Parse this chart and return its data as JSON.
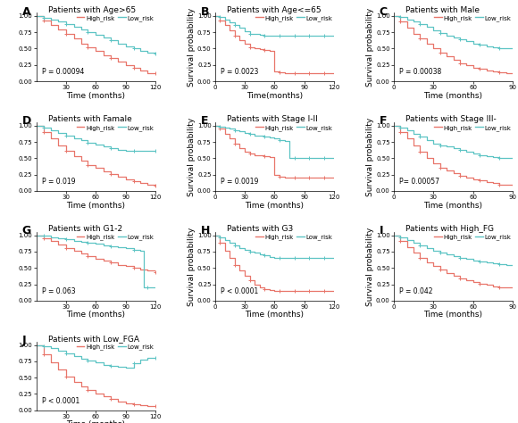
{
  "panels": [
    {
      "label": "A",
      "title": "Patients with Age>65",
      "pvalue": "P = 0.00094",
      "xlim": [
        0,
        120
      ],
      "ylim": [
        0,
        1.05
      ],
      "xticks": [
        30,
        60,
        90,
        120
      ],
      "yticks": [
        0.0,
        0.25,
        0.5,
        0.75,
        1.0
      ],
      "show_ylabel": false,
      "xlabel": "Time (months)",
      "row": 0,
      "col": 0,
      "high_x": [
        0,
        8,
        15,
        22,
        30,
        38,
        45,
        52,
        60,
        68,
        75,
        82,
        90,
        98,
        105,
        112,
        120
      ],
      "high_y": [
        1.0,
        0.93,
        0.86,
        0.79,
        0.72,
        0.65,
        0.58,
        0.52,
        0.46,
        0.4,
        0.35,
        0.3,
        0.25,
        0.2,
        0.16,
        0.13,
        0.12
      ],
      "low_x": [
        0,
        8,
        15,
        22,
        30,
        38,
        45,
        52,
        60,
        68,
        75,
        82,
        90,
        98,
        105,
        112,
        120
      ],
      "low_y": [
        1.0,
        0.97,
        0.94,
        0.91,
        0.87,
        0.83,
        0.79,
        0.75,
        0.71,
        0.67,
        0.63,
        0.58,
        0.54,
        0.5,
        0.47,
        0.44,
        0.42
      ],
      "partial": true
    },
    {
      "label": "B",
      "title": "Patients with Age<=65",
      "pvalue": "P = 0.0023",
      "xlim": [
        0,
        120
      ],
      "ylim": [
        0,
        1.05
      ],
      "xticks": [
        0,
        30,
        60,
        90,
        120
      ],
      "yticks": [
        0.0,
        0.25,
        0.5,
        0.75,
        1.0
      ],
      "show_ylabel": true,
      "xlabel": "Time(months)",
      "row": 0,
      "col": 1,
      "high_x": [
        0,
        5,
        10,
        15,
        20,
        25,
        30,
        35,
        40,
        45,
        50,
        55,
        60,
        65,
        70,
        75,
        80,
        85,
        90,
        95,
        100,
        105,
        110,
        115,
        120
      ],
      "high_y": [
        1.0,
        0.93,
        0.86,
        0.78,
        0.7,
        0.63,
        0.57,
        0.52,
        0.5,
        0.49,
        0.48,
        0.47,
        0.15,
        0.14,
        0.13,
        0.13,
        0.13,
        0.13,
        0.13,
        0.13,
        0.13,
        0.13,
        0.13,
        0.13,
        0.13
      ],
      "low_x": [
        0,
        5,
        10,
        15,
        20,
        25,
        30,
        35,
        40,
        45,
        50,
        55,
        60,
        65,
        70,
        75,
        80,
        85,
        90,
        95,
        100,
        105,
        110,
        115,
        120
      ],
      "low_y": [
        1.0,
        0.98,
        0.95,
        0.9,
        0.86,
        0.82,
        0.76,
        0.73,
        0.72,
        0.71,
        0.7,
        0.7,
        0.7,
        0.7,
        0.7,
        0.7,
        0.7,
        0.7,
        0.7,
        0.7,
        0.7,
        0.7,
        0.7,
        0.7,
        0.7
      ],
      "partial": false
    },
    {
      "label": "C",
      "title": "Patients with Male",
      "pvalue": "P = 0.00038",
      "xlim": [
        0,
        90
      ],
      "ylim": [
        0,
        1.05
      ],
      "xticks": [
        0,
        30,
        60,
        90
      ],
      "yticks": [
        0.0,
        0.25,
        0.5,
        0.75,
        1.0
      ],
      "show_ylabel": true,
      "xlabel": "Time (months)",
      "row": 0,
      "col": 2,
      "high_x": [
        0,
        5,
        10,
        15,
        20,
        25,
        30,
        35,
        40,
        45,
        50,
        55,
        60,
        65,
        70,
        75,
        80,
        85,
        90
      ],
      "high_y": [
        1.0,
        0.91,
        0.82,
        0.73,
        0.65,
        0.57,
        0.5,
        0.44,
        0.38,
        0.33,
        0.28,
        0.24,
        0.21,
        0.19,
        0.17,
        0.15,
        0.14,
        0.13,
        0.12
      ],
      "low_x": [
        0,
        5,
        10,
        15,
        20,
        25,
        30,
        35,
        40,
        45,
        50,
        55,
        60,
        65,
        70,
        75,
        80,
        85,
        90
      ],
      "low_y": [
        1.0,
        0.98,
        0.95,
        0.91,
        0.87,
        0.83,
        0.78,
        0.74,
        0.7,
        0.67,
        0.64,
        0.61,
        0.58,
        0.56,
        0.54,
        0.52,
        0.51,
        0.5,
        0.5
      ],
      "partial": true
    },
    {
      "label": "D",
      "title": "Patients with Famale",
      "pvalue": "P = 0.019",
      "xlim": [
        0,
        120
      ],
      "ylim": [
        0,
        1.05
      ],
      "xticks": [
        30,
        60,
        90,
        120
      ],
      "yticks": [
        0.0,
        0.25,
        0.5,
        0.75,
        1.0
      ],
      "show_ylabel": false,
      "xlabel": "Time (months)",
      "row": 1,
      "col": 0,
      "high_x": [
        0,
        8,
        15,
        22,
        30,
        38,
        45,
        52,
        60,
        68,
        75,
        82,
        90,
        98,
        105,
        112,
        120
      ],
      "high_y": [
        1.0,
        0.9,
        0.8,
        0.7,
        0.61,
        0.53,
        0.46,
        0.4,
        0.35,
        0.3,
        0.26,
        0.22,
        0.18,
        0.15,
        0.12,
        0.1,
        0.08
      ],
      "low_x": [
        0,
        8,
        15,
        22,
        30,
        38,
        45,
        52,
        60,
        68,
        75,
        82,
        90,
        98,
        105,
        112,
        120
      ],
      "low_y": [
        1.0,
        0.97,
        0.93,
        0.89,
        0.85,
        0.81,
        0.78,
        0.74,
        0.71,
        0.68,
        0.65,
        0.63,
        0.62,
        0.62,
        0.62,
        0.62,
        0.62
      ],
      "partial": true
    },
    {
      "label": "E",
      "title": "Patients with Stage I-II",
      "pvalue": "P = 0.0019",
      "xlim": [
        0,
        120
      ],
      "ylim": [
        0,
        1.05
      ],
      "xticks": [
        0,
        30,
        60,
        90,
        120
      ],
      "yticks": [
        0.0,
        0.25,
        0.5,
        0.75,
        1.0
      ],
      "show_ylabel": true,
      "xlabel": "Time (months)",
      "row": 1,
      "col": 1,
      "high_x": [
        0,
        5,
        10,
        15,
        20,
        25,
        30,
        35,
        40,
        45,
        50,
        55,
        60,
        65,
        70,
        75,
        80,
        85,
        90,
        95,
        100,
        105,
        110,
        115,
        120
      ],
      "high_y": [
        1.0,
        0.95,
        0.88,
        0.8,
        0.72,
        0.65,
        0.6,
        0.57,
        0.55,
        0.54,
        0.53,
        0.52,
        0.25,
        0.22,
        0.21,
        0.2,
        0.2,
        0.2,
        0.2,
        0.2,
        0.2,
        0.2,
        0.2,
        0.2,
        0.2
      ],
      "low_x": [
        0,
        5,
        10,
        15,
        20,
        25,
        30,
        35,
        40,
        45,
        50,
        55,
        60,
        65,
        70,
        75,
        80,
        85,
        90,
        95,
        100,
        105,
        110,
        115,
        120
      ],
      "low_y": [
        1.0,
        0.99,
        0.97,
        0.95,
        0.93,
        0.91,
        0.89,
        0.87,
        0.85,
        0.84,
        0.83,
        0.82,
        0.8,
        0.78,
        0.76,
        0.5,
        0.5,
        0.5,
        0.5,
        0.5,
        0.5,
        0.5,
        0.5,
        0.5,
        0.5
      ],
      "partial": false
    },
    {
      "label": "F",
      "title": "Patients with Stage III-",
      "pvalue": "P= 0.00057",
      "xlim": [
        0,
        90
      ],
      "ylim": [
        0,
        1.05
      ],
      "xticks": [
        0,
        30,
        60,
        90
      ],
      "yticks": [
        0.0,
        0.25,
        0.5,
        0.75,
        1.0
      ],
      "show_ylabel": true,
      "xlabel": "Time (months)",
      "row": 1,
      "col": 2,
      "high_x": [
        0,
        5,
        10,
        15,
        20,
        25,
        30,
        35,
        40,
        45,
        50,
        55,
        60,
        65,
        70,
        75,
        80,
        85,
        90
      ],
      "high_y": [
        1.0,
        0.9,
        0.8,
        0.7,
        0.6,
        0.5,
        0.42,
        0.36,
        0.31,
        0.27,
        0.23,
        0.2,
        0.18,
        0.16,
        0.14,
        0.12,
        0.1,
        0.09,
        0.08
      ],
      "low_x": [
        0,
        5,
        10,
        15,
        20,
        25,
        30,
        35,
        40,
        45,
        50,
        55,
        60,
        65,
        70,
        75,
        80,
        85,
        90
      ],
      "low_y": [
        1.0,
        0.97,
        0.93,
        0.88,
        0.83,
        0.78,
        0.73,
        0.7,
        0.68,
        0.66,
        0.63,
        0.6,
        0.57,
        0.55,
        0.53,
        0.52,
        0.51,
        0.51,
        0.5
      ],
      "partial": true
    },
    {
      "label": "G",
      "title": "Patients with G1-2",
      "pvalue": "P = 0.063",
      "xlim": [
        0,
        120
      ],
      "ylim": [
        0,
        1.05
      ],
      "xticks": [
        30,
        60,
        90,
        120
      ],
      "yticks": [
        0.0,
        0.25,
        0.5,
        0.75,
        1.0
      ],
      "show_ylabel": false,
      "xlabel": "Time (months)",
      "row": 2,
      "col": 0,
      "high_x": [
        0,
        8,
        15,
        22,
        30,
        38,
        45,
        52,
        60,
        68,
        75,
        82,
        90,
        98,
        105,
        112,
        120
      ],
      "high_y": [
        1.0,
        0.96,
        0.91,
        0.86,
        0.81,
        0.76,
        0.72,
        0.68,
        0.64,
        0.61,
        0.58,
        0.55,
        0.53,
        0.5,
        0.48,
        0.46,
        0.44
      ],
      "low_x": [
        0,
        8,
        15,
        22,
        30,
        38,
        45,
        52,
        60,
        68,
        75,
        82,
        90,
        98,
        105,
        108,
        112,
        120
      ],
      "low_y": [
        1.0,
        0.99,
        0.97,
        0.95,
        0.94,
        0.92,
        0.9,
        0.89,
        0.87,
        0.85,
        0.83,
        0.82,
        0.8,
        0.78,
        0.76,
        0.2,
        0.2,
        0.2
      ],
      "partial": false
    },
    {
      "label": "H",
      "title": "Patients with G3",
      "pvalue": "P < 0.0001",
      "xlim": [
        0,
        120
      ],
      "ylim": [
        0,
        1.05
      ],
      "xticks": [
        0,
        30,
        60,
        90,
        120
      ],
      "yticks": [
        0.0,
        0.25,
        0.5,
        0.75,
        1.0
      ],
      "show_ylabel": true,
      "xlabel": "Time (months)",
      "row": 2,
      "col": 1,
      "high_x": [
        0,
        5,
        10,
        15,
        20,
        25,
        30,
        35,
        40,
        45,
        50,
        55,
        60,
        65,
        70,
        75,
        80,
        85,
        90,
        95,
        100,
        105,
        110,
        115,
        120
      ],
      "high_y": [
        1.0,
        0.88,
        0.76,
        0.65,
        0.55,
        0.46,
        0.38,
        0.31,
        0.25,
        0.21,
        0.18,
        0.16,
        0.15,
        0.15,
        0.15,
        0.15,
        0.15,
        0.15,
        0.15,
        0.15,
        0.15,
        0.15,
        0.15,
        0.15,
        0.15
      ],
      "low_x": [
        0,
        5,
        10,
        15,
        20,
        25,
        30,
        35,
        40,
        45,
        50,
        55,
        60,
        65,
        70,
        75,
        80,
        85,
        90,
        95,
        100,
        105,
        110,
        115,
        120
      ],
      "low_y": [
        1.0,
        0.97,
        0.93,
        0.89,
        0.85,
        0.81,
        0.78,
        0.75,
        0.73,
        0.71,
        0.69,
        0.67,
        0.66,
        0.65,
        0.65,
        0.65,
        0.65,
        0.65,
        0.65,
        0.65,
        0.65,
        0.65,
        0.65,
        0.65,
        0.65
      ],
      "partial": false
    },
    {
      "label": "I",
      "title": "Patients with High_FG",
      "pvalue": "P = 0.042",
      "xlim": [
        0,
        90
      ],
      "ylim": [
        0,
        1.05
      ],
      "xticks": [
        0,
        30,
        60,
        90
      ],
      "yticks": [
        0.0,
        0.25,
        0.5,
        0.75,
        1.0
      ],
      "show_ylabel": true,
      "xlabel": "Time (months)",
      "row": 2,
      "col": 2,
      "high_x": [
        0,
        5,
        10,
        15,
        20,
        25,
        30,
        35,
        40,
        45,
        50,
        55,
        60,
        65,
        70,
        75,
        80,
        85,
        90
      ],
      "high_y": [
        1.0,
        0.91,
        0.82,
        0.74,
        0.66,
        0.59,
        0.53,
        0.47,
        0.42,
        0.38,
        0.34,
        0.31,
        0.28,
        0.26,
        0.24,
        0.22,
        0.21,
        0.2,
        0.2
      ],
      "low_x": [
        0,
        5,
        10,
        15,
        20,
        25,
        30,
        35,
        40,
        45,
        50,
        55,
        60,
        65,
        70,
        75,
        80,
        85,
        90
      ],
      "low_y": [
        1.0,
        0.97,
        0.93,
        0.89,
        0.85,
        0.81,
        0.77,
        0.74,
        0.71,
        0.68,
        0.66,
        0.64,
        0.62,
        0.6,
        0.58,
        0.57,
        0.56,
        0.55,
        0.54
      ],
      "partial": false
    },
    {
      "label": "J",
      "title": "Patients with Low_FGA",
      "pvalue": "P < 0.0001",
      "xlim": [
        0,
        120
      ],
      "ylim": [
        0,
        1.05
      ],
      "xticks": [
        30,
        60,
        90,
        120
      ],
      "yticks": [
        0.0,
        0.25,
        0.5,
        0.75,
        1.0
      ],
      "show_ylabel": false,
      "xlabel": "Time (months)",
      "row": 3,
      "col": 0,
      "high_x": [
        0,
        8,
        15,
        22,
        30,
        38,
        45,
        52,
        60,
        68,
        75,
        82,
        90,
        98,
        105,
        112,
        120
      ],
      "high_y": [
        1.0,
        0.86,
        0.73,
        0.62,
        0.52,
        0.44,
        0.37,
        0.31,
        0.25,
        0.21,
        0.17,
        0.14,
        0.11,
        0.09,
        0.08,
        0.07,
        0.07
      ],
      "low_x": [
        0,
        8,
        15,
        22,
        30,
        38,
        45,
        52,
        60,
        68,
        75,
        82,
        90,
        98,
        105,
        112,
        120
      ],
      "low_y": [
        1.0,
        0.98,
        0.95,
        0.91,
        0.87,
        0.83,
        0.79,
        0.76,
        0.73,
        0.7,
        0.68,
        0.66,
        0.65,
        0.72,
        0.78,
        0.8,
        0.8
      ],
      "partial": false
    }
  ],
  "high_color": "#E8756A",
  "low_color": "#5DC4C4",
  "figwidth": 5.8,
  "figheight": 4.74,
  "label_fontsize": 6.5,
  "title_fontsize": 6.5,
  "legend_fontsize": 5.0,
  "pvalue_fontsize": 5.5,
  "tick_fontsize": 5.0,
  "panel_label_fontsize": 9
}
